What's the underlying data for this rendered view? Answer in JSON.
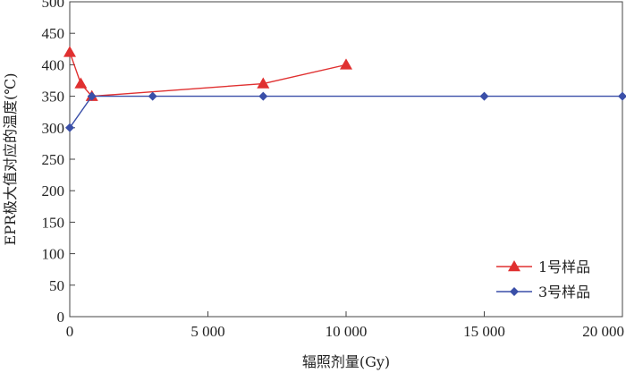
{
  "chart_data": {
    "type": "line",
    "xlabel": "辐照剂量(Gy)",
    "ylabel": "EPR极大值对应的温度(℃)",
    "xlim": [
      0,
      20000
    ],
    "ylim": [
      0,
      500
    ],
    "x_ticks": [
      0,
      5000,
      10000,
      15000,
      20000
    ],
    "x_tick_labels": [
      "0",
      "5 000",
      "10 000",
      "15 000",
      "20 000"
    ],
    "y_ticks": [
      0,
      50,
      100,
      150,
      200,
      250,
      300,
      350,
      400,
      450,
      500
    ],
    "y_tick_labels": [
      "0",
      "50",
      "100",
      "150",
      "200",
      "250",
      "300",
      "350",
      "400",
      "450",
      "500"
    ],
    "grid": false,
    "legend_position": "bottom-right",
    "series": [
      {
        "name": "1号样品",
        "color": "#e03030",
        "marker": "triangle",
        "x": [
          0,
          400,
          800,
          7000,
          10000
        ],
        "y": [
          420,
          370,
          350,
          370,
          400
        ]
      },
      {
        "name": "3号样品",
        "color": "#3a4fa8",
        "marker": "diamond",
        "x": [
          0,
          800,
          3000,
          7000,
          15000,
          20000
        ],
        "y": [
          300,
          350,
          350,
          350,
          350,
          350
        ]
      }
    ]
  }
}
